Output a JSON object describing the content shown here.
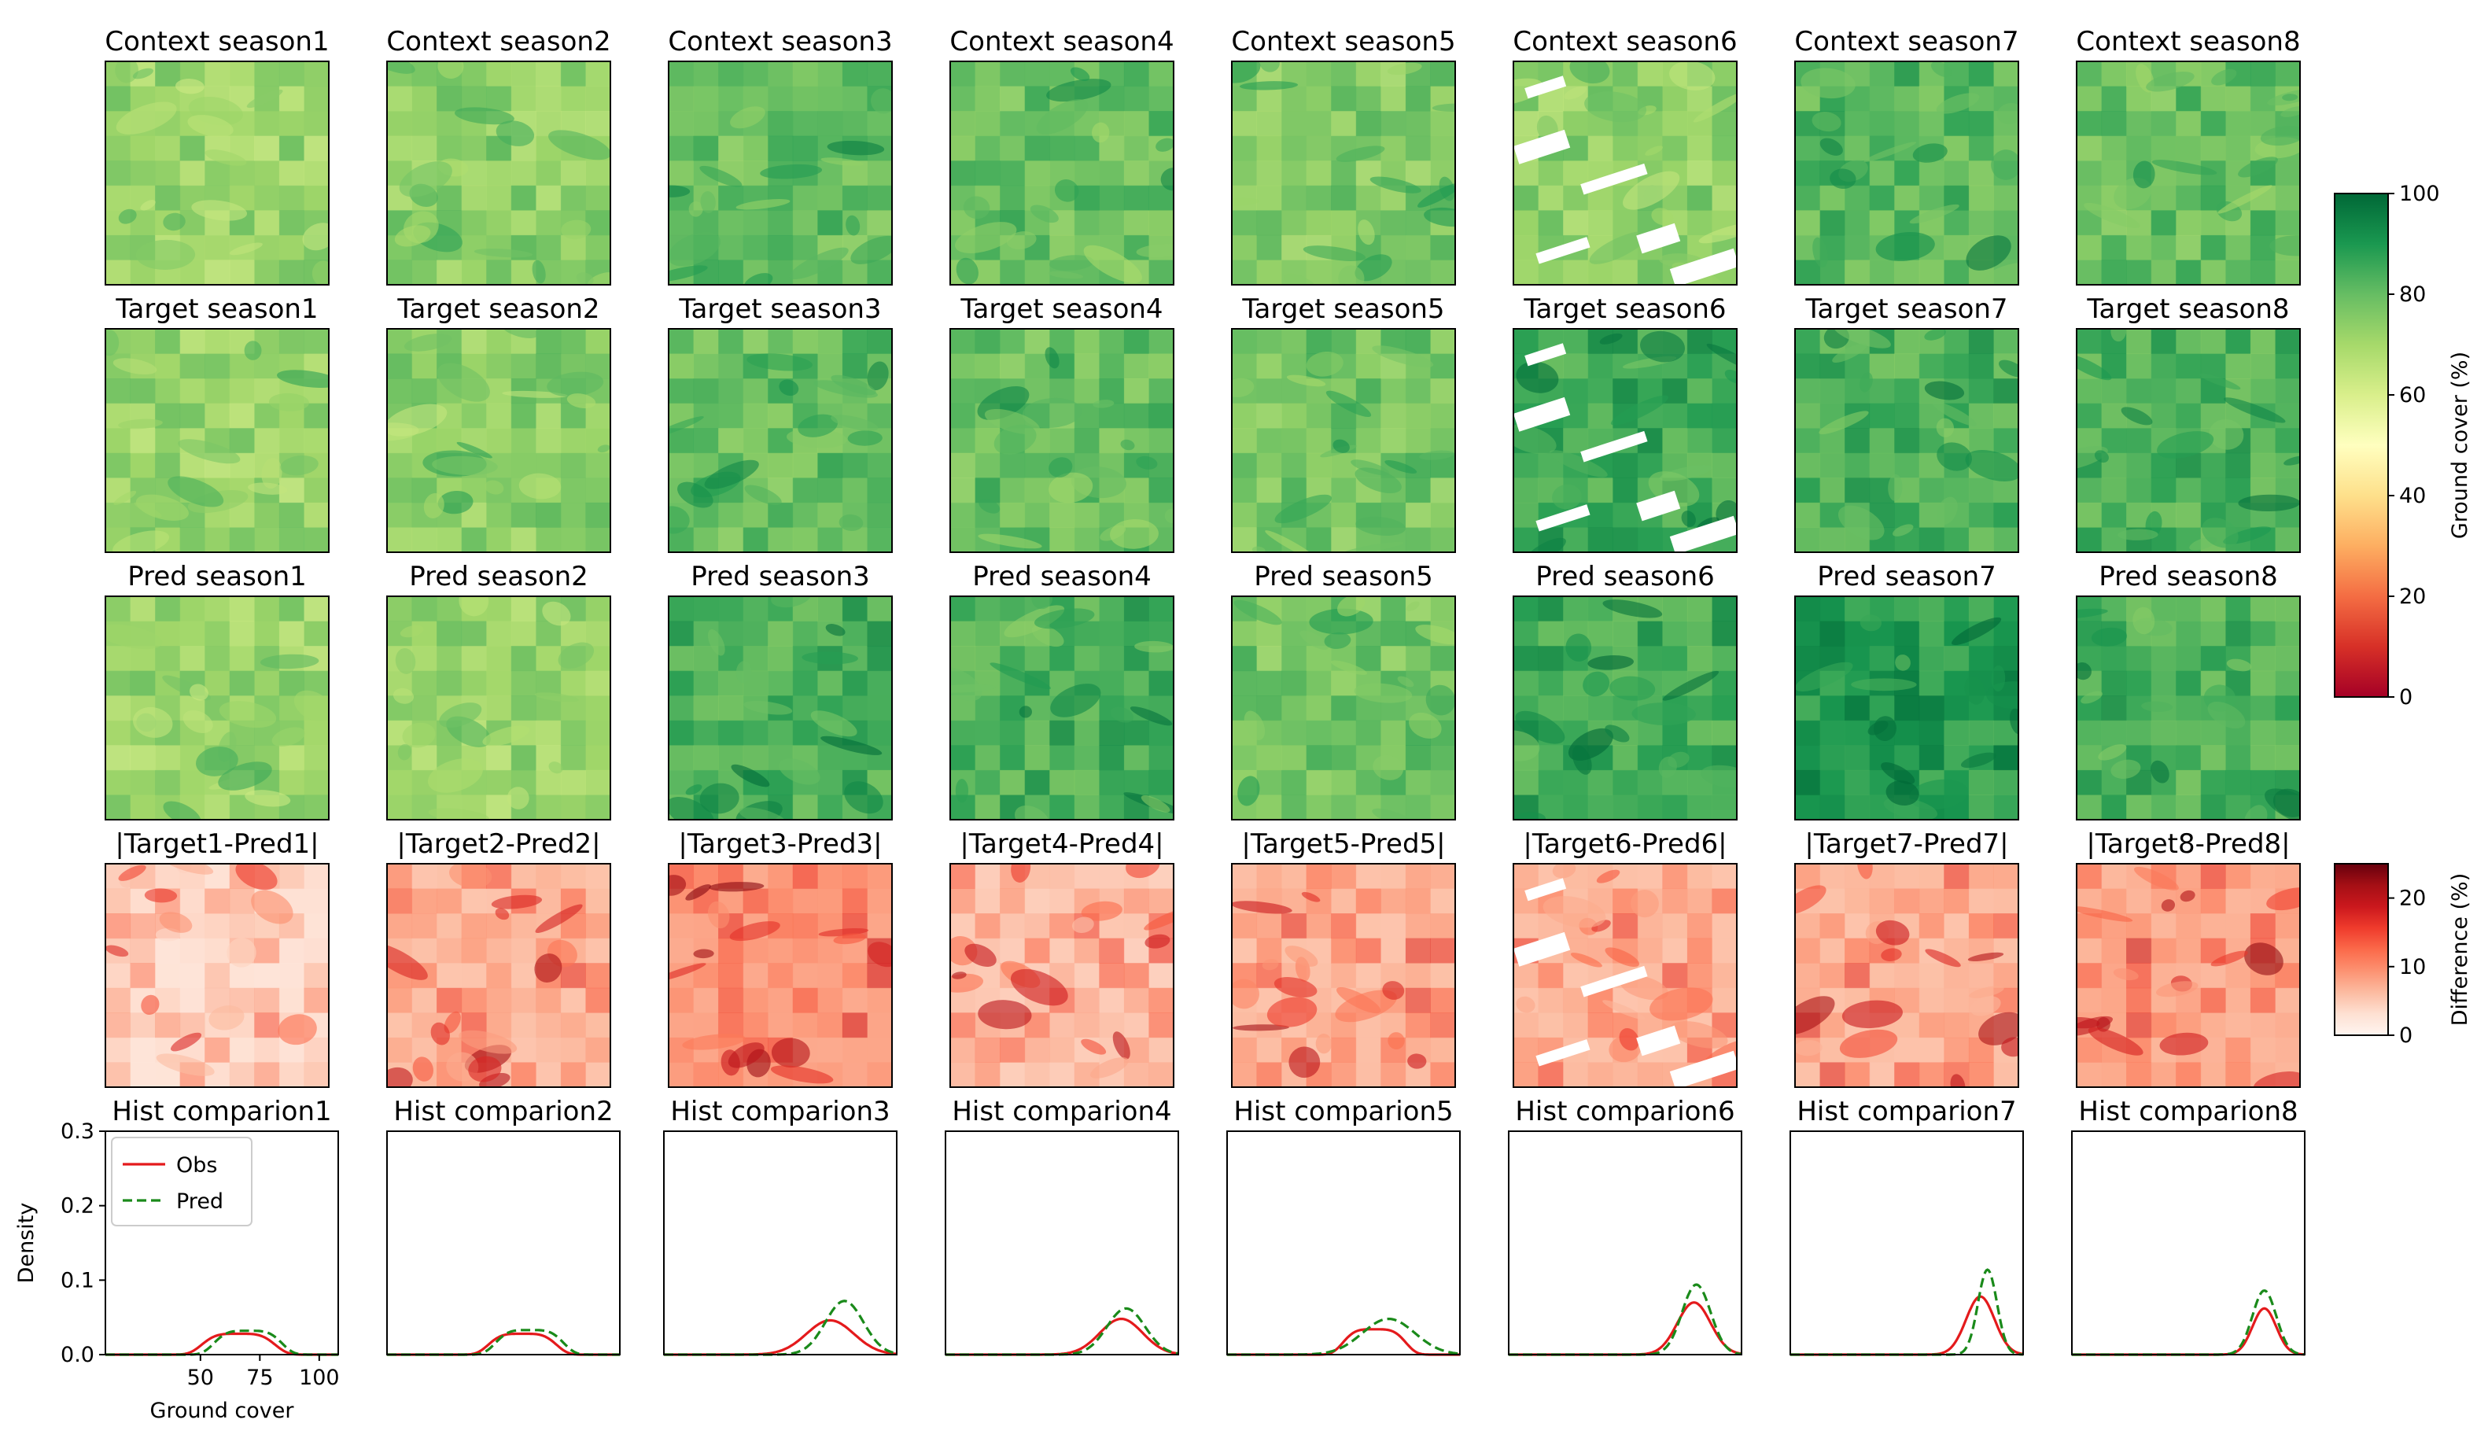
{
  "colors": {
    "obs_line": "#e41a1c",
    "pred_line": "#1a8a1a",
    "frame": "#000000",
    "cloud_mask": "#ffffff"
  },
  "chart_data": [
    {
      "type": "heatmap",
      "row": "context",
      "colormap": "RdYlGn",
      "vmin": 0,
      "vmax": 100,
      "panels": [
        {
          "title": "Context season1",
          "mean": 72
        },
        {
          "title": "Context season2",
          "mean": 74
        },
        {
          "title": "Context season3",
          "mean": 80
        },
        {
          "title": "Context season4",
          "mean": 80
        },
        {
          "title": "Context season5",
          "mean": 76
        },
        {
          "title": "Context season6",
          "mean": 74,
          "has_mask": true
        },
        {
          "title": "Context season7",
          "mean": 82
        },
        {
          "title": "Context season8",
          "mean": 80
        }
      ],
      "colorbar": {
        "label": "Ground cover (%)",
        "ticks": [
          "0",
          "20",
          "40",
          "60",
          "80",
          "100"
        ]
      }
    },
    {
      "type": "heatmap",
      "row": "target",
      "colormap": "RdYlGn",
      "vmin": 0,
      "vmax": 100,
      "panels": [
        {
          "title": "Target season1",
          "mean": 72
        },
        {
          "title": "Target season2",
          "mean": 74
        },
        {
          "title": "Target season3",
          "mean": 80
        },
        {
          "title": "Target season4",
          "mean": 80
        },
        {
          "title": "Target season5",
          "mean": 78
        },
        {
          "title": "Target season6",
          "mean": 86,
          "has_mask": true
        },
        {
          "title": "Target season7",
          "mean": 84
        },
        {
          "title": "Target season8",
          "mean": 84
        }
      ]
    },
    {
      "type": "heatmap",
      "row": "pred",
      "colormap": "RdYlGn",
      "vmin": 0,
      "vmax": 100,
      "panels": [
        {
          "title": "Pred season1",
          "mean": 72
        },
        {
          "title": "Pred season2",
          "mean": 72
        },
        {
          "title": "Pred season3",
          "mean": 84
        },
        {
          "title": "Pred season4",
          "mean": 84
        },
        {
          "title": "Pred season5",
          "mean": 78
        },
        {
          "title": "Pred season6",
          "mean": 86
        },
        {
          "title": "Pred season7",
          "mean": 90
        },
        {
          "title": "Pred season8",
          "mean": 84
        }
      ]
    },
    {
      "type": "heatmap",
      "row": "difference",
      "colormap": "Reds",
      "vmin": 0,
      "vmax": 25,
      "panels": [
        {
          "title": "|Target1-Pred1|",
          "mean": 3
        },
        {
          "title": "|Target2-Pred2|",
          "mean": 6
        },
        {
          "title": "|Target3-Pred3|",
          "mean": 8
        },
        {
          "title": "|Target4-Pred4|",
          "mean": 5
        },
        {
          "title": "|Target5-Pred5|",
          "mean": 6
        },
        {
          "title": "|Target6-Pred6|",
          "mean": 6,
          "has_mask": true
        },
        {
          "title": "|Target7-Pred7|",
          "mean": 6
        },
        {
          "title": "|Target8-Pred8|",
          "mean": 7
        }
      ],
      "colorbar": {
        "label": "Difference (%)",
        "ticks": [
          "0",
          "10",
          "20"
        ]
      }
    },
    {
      "type": "line",
      "row": "histogram",
      "xlim": [
        10,
        108
      ],
      "ylim": [
        0,
        0.3
      ],
      "xlabel": "Ground cover",
      "ylabel": "Density",
      "xticks": [
        "50",
        "75",
        "100"
      ],
      "yticks": [
        "0.0",
        "0.1",
        "0.2",
        "0.3"
      ],
      "legend": {
        "placement": "upper-left",
        "entries": [
          "Obs",
          "Pred"
        ]
      },
      "panels": [
        {
          "title": "Hist comparion1",
          "obs": {
            "center": 66,
            "width": 14,
            "peak": 0.028,
            "plateau": true
          },
          "pred": {
            "center": 70,
            "width": 13,
            "peak": 0.032,
            "plateau": true
          }
        },
        {
          "title": "Hist comparion2",
          "obs": {
            "center": 67,
            "width": 13,
            "peak": 0.028,
            "plateau": true
          },
          "pred": {
            "center": 70,
            "width": 13,
            "peak": 0.033,
            "plateau": true
          }
        },
        {
          "title": "Hist comparion3",
          "obs": {
            "center": 80,
            "width": 10,
            "peak": 0.046
          },
          "pred": {
            "center": 86,
            "width": 8,
            "peak": 0.072
          }
        },
        {
          "title": "Hist comparion4",
          "obs": {
            "center": 84,
            "width": 9,
            "peak": 0.048
          },
          "pred": {
            "center": 86,
            "width": 8,
            "peak": 0.062
          }
        },
        {
          "title": "Hist comparion5",
          "obs": {
            "center": 72,
            "width": 12,
            "peak": 0.034,
            "plateau": true
          },
          "pred": {
            "center": 78,
            "width": 11,
            "peak": 0.048
          }
        },
        {
          "title": "Hist comparion6",
          "obs": {
            "center": 88,
            "width": 7,
            "peak": 0.07
          },
          "pred": {
            "center": 89,
            "width": 6,
            "peak": 0.094
          }
        },
        {
          "title": "Hist comparion7",
          "obs": {
            "center": 90,
            "width": 6,
            "peak": 0.078
          },
          "pred": {
            "center": 93,
            "width": 4,
            "peak": 0.114
          }
        },
        {
          "title": "Hist comparion8",
          "obs": {
            "center": 91,
            "width": 5,
            "peak": 0.062
          },
          "pred": {
            "center": 91,
            "width": 5,
            "peak": 0.086
          }
        }
      ]
    }
  ]
}
